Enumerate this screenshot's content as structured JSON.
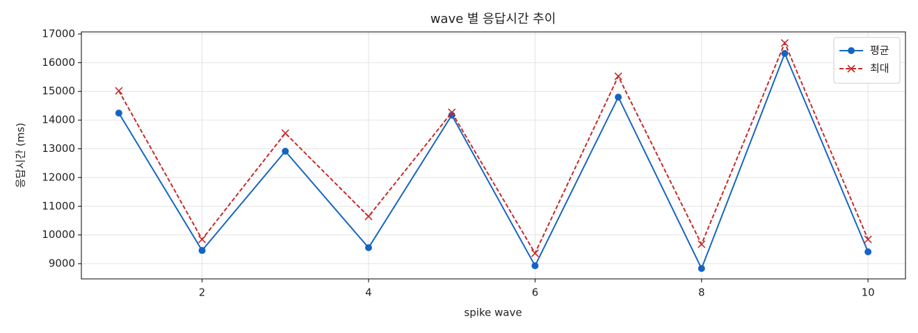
{
  "chart_data": {
    "type": "line",
    "title": "wave 별 응답시간 추이",
    "xlabel": "spike wave",
    "ylabel": "응답시간 (ms)",
    "x": [
      1,
      2,
      3,
      4,
      5,
      6,
      7,
      8,
      9,
      10
    ],
    "series": [
      {
        "name": "평균",
        "color": "#1565c0",
        "marker": "o",
        "linestyle": "solid",
        "values": [
          14245,
          9459,
          12915,
          9556,
          14172,
          8927,
          14801,
          8831,
          16323,
          9411
        ]
      },
      {
        "name": "최대",
        "color": "#c62828",
        "marker": "x",
        "linestyle": "dashed",
        "values": [
          15018,
          9846,
          13544,
          10644,
          14269,
          9363,
          15526,
          9677,
          16686,
          9846
        ]
      }
    ],
    "xlim": [
      0.55,
      10.45
    ],
    "xticks": [
      2,
      4,
      6,
      8,
      10
    ],
    "ylim": [
      8469,
      17072
    ],
    "yticks": [
      9000,
      10000,
      11000,
      12000,
      13000,
      14000,
      15000,
      16000,
      17000
    ],
    "grid": true,
    "legend": "upper right"
  }
}
